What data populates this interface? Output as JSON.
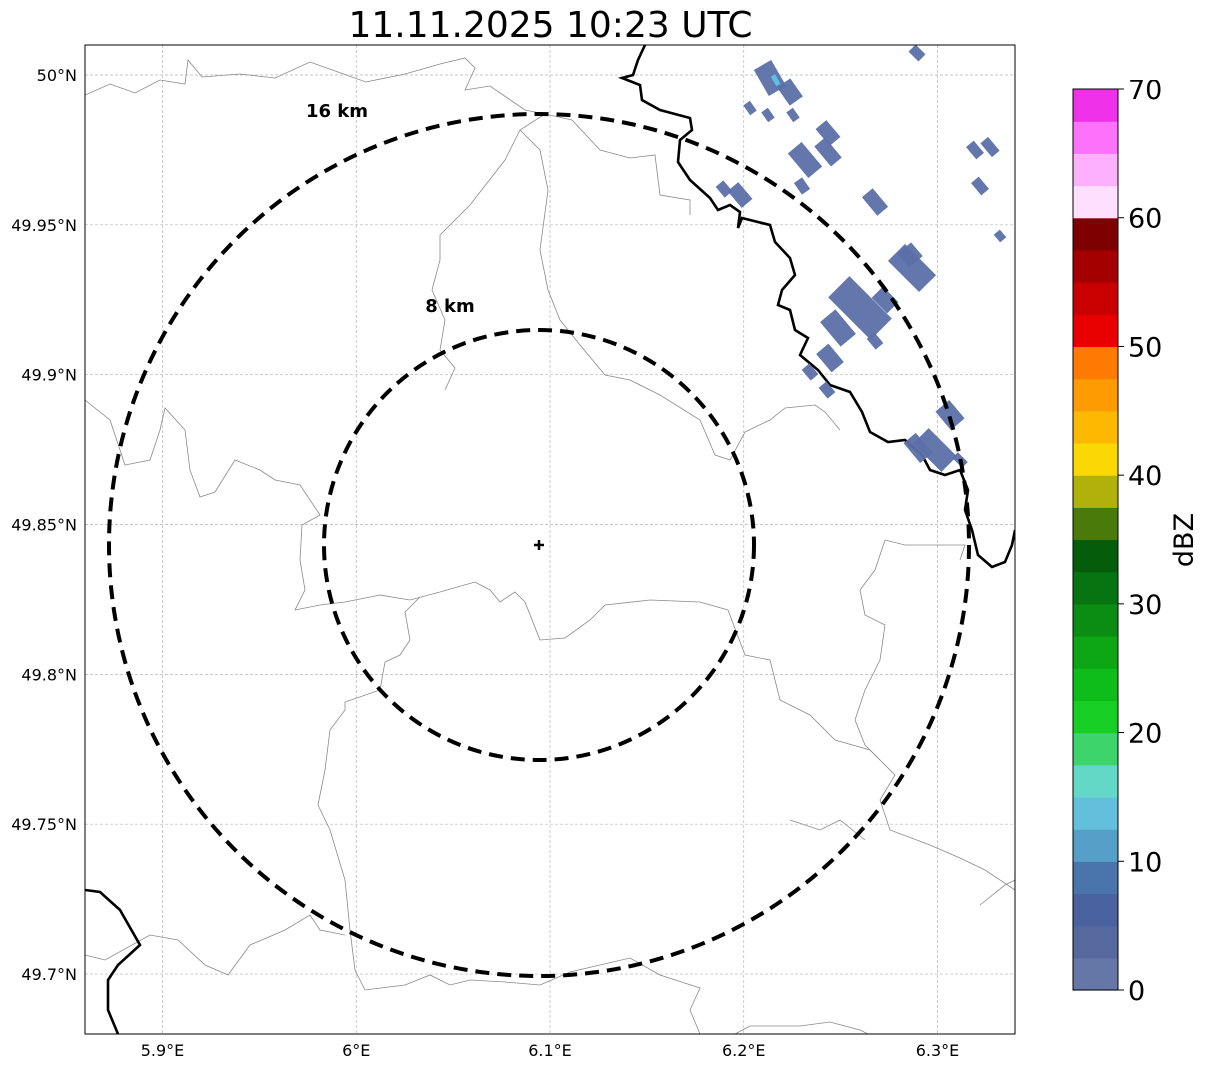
{
  "title": "11.11.2025 10:23 UTC",
  "map": {
    "lon_range": [
      5.86,
      6.34
    ],
    "lat_range": [
      49.68,
      50.01
    ],
    "grid": true,
    "x_ticks": [
      {
        "value": 5.9,
        "label": "5.9°E"
      },
      {
        "value": 6.0,
        "label": "6°E"
      },
      {
        "value": 6.1,
        "label": "6.1°E"
      },
      {
        "value": 6.2,
        "label": "6.2°E"
      },
      {
        "value": 6.3,
        "label": "6.3°E"
      }
    ],
    "y_ticks": [
      {
        "value": 50.0,
        "label": "50°N"
      },
      {
        "value": 49.95,
        "label": "49.95°N"
      },
      {
        "value": 49.9,
        "label": "49.9°N"
      },
      {
        "value": 49.85,
        "label": "49.85°N"
      },
      {
        "value": 49.8,
        "label": "49.8°N"
      },
      {
        "value": 49.75,
        "label": "49.75°N"
      },
      {
        "value": 49.7,
        "label": "49.7°N"
      }
    ],
    "center_marker": {
      "lon": 6.095,
      "lat": 49.843,
      "symbol": "+"
    },
    "range_rings": [
      {
        "radius_km": 8,
        "label": "8 km"
      },
      {
        "radius_km": 16,
        "label": "16 km"
      }
    ],
    "echo_color": "#5b70a8",
    "echo_highlight_color": "#5fbfe0"
  },
  "colorbar": {
    "label": "dBZ",
    "min": 0,
    "max": 70,
    "step": 2.5,
    "tick_labels": [
      "0",
      "10",
      "20",
      "30",
      "40",
      "50",
      "60",
      "70"
    ],
    "colors": [
      "#6577a6",
      "#55699f",
      "#4a62a0",
      "#4a74ac",
      "#559fc8",
      "#62c0dc",
      "#63d8c7",
      "#3dd46b",
      "#17cf24",
      "#0fbd1a",
      "#0da615",
      "#0b8c12",
      "#087411",
      "#055c0a",
      "#4a7b0a",
      "#b0b10a",
      "#fbd803",
      "#fdb802",
      "#fe9a02",
      "#fe7a02",
      "#e80000",
      "#c80000",
      "#a50000",
      "#7f0000",
      "#fedffe",
      "#fdb0fc",
      "#fc72fb",
      "#ef31ea"
    ]
  }
}
